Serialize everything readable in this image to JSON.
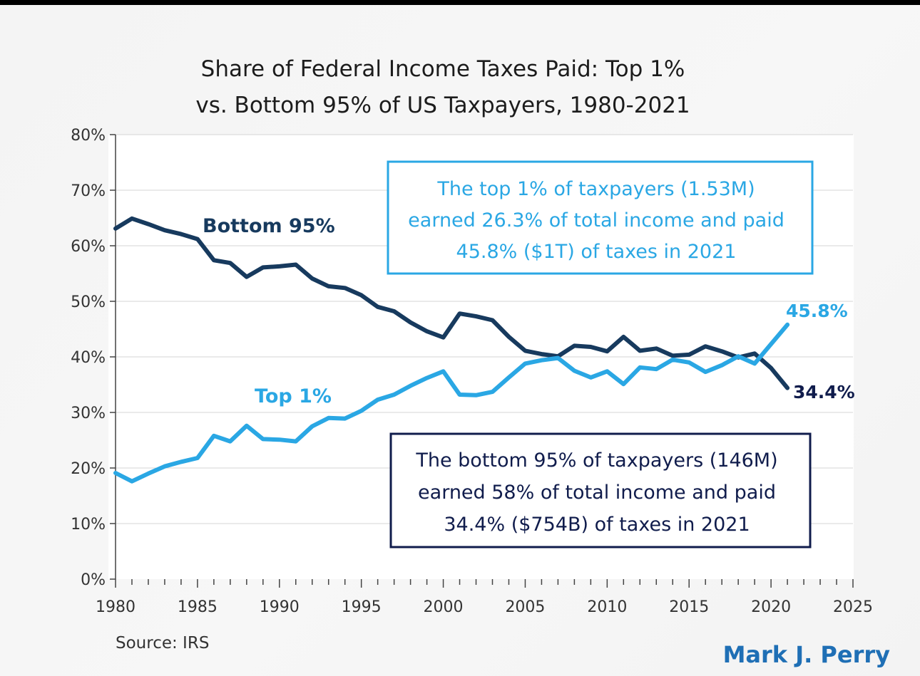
{
  "chart_data": {
    "type": "line",
    "title": [
      "Share of Federal Income Taxes Paid: Top 1%",
      "vs. Bottom 95% of US Taxpayers, 1980-2021"
    ],
    "xlabel": "",
    "ylabel": "",
    "xlim": [
      1980,
      2025
    ],
    "ylim": [
      0,
      80
    ],
    "x_ticks": [
      1980,
      1985,
      1990,
      1995,
      2000,
      2005,
      2010,
      2015,
      2020,
      2025
    ],
    "y_ticks": [
      0,
      10,
      20,
      30,
      40,
      50,
      60,
      70,
      80
    ],
    "y_tick_labels": [
      "0%",
      "10%",
      "20%",
      "30%",
      "40%",
      "50%",
      "60%",
      "70%",
      "80%"
    ],
    "grid": "horizontal",
    "x": [
      1980,
      1981,
      1982,
      1983,
      1984,
      1985,
      1986,
      1987,
      1988,
      1989,
      1990,
      1991,
      1992,
      1993,
      1994,
      1995,
      1996,
      1997,
      1998,
      1999,
      2000,
      2001,
      2002,
      2003,
      2004,
      2005,
      2006,
      2007,
      2008,
      2009,
      2010,
      2011,
      2012,
      2013,
      2014,
      2015,
      2016,
      2017,
      2018,
      2019,
      2020,
      2021
    ],
    "series": [
      {
        "name": "Bottom 95%",
        "color": "#173a5e",
        "values": [
          63.1,
          64.9,
          63.9,
          62.8,
          62.1,
          61.2,
          57.4,
          56.9,
          54.4,
          56.1,
          56.3,
          56.6,
          54.1,
          52.7,
          52.4,
          51.1,
          49.0,
          48.2,
          46.2,
          44.6,
          43.5,
          47.8,
          47.3,
          46.6,
          43.6,
          41.1,
          40.5,
          40.1,
          42.0,
          41.8,
          41.0,
          43.6,
          41.1,
          41.5,
          40.2,
          40.4,
          41.9,
          41.0,
          39.9,
          40.6,
          38.0,
          34.4
        ],
        "end_label": "34.4%",
        "end_label_color": "#101c4c"
      },
      {
        "name": "Top 1%",
        "color": "#2aa7e4",
        "values": [
          19.1,
          17.6,
          19.0,
          20.3,
          21.1,
          21.8,
          25.8,
          24.8,
          27.6,
          25.2,
          25.1,
          24.8,
          27.5,
          29.0,
          28.9,
          30.3,
          32.3,
          33.2,
          34.8,
          36.2,
          37.4,
          33.2,
          33.1,
          33.7,
          36.3,
          38.8,
          39.4,
          39.8,
          37.5,
          36.3,
          37.4,
          35.1,
          38.1,
          37.8,
          39.5,
          39.0,
          37.3,
          38.5,
          40.1,
          38.8,
          42.3,
          45.8
        ],
        "end_label": "45.8%",
        "end_label_color": "#2aa7e4"
      }
    ],
    "annotations": [
      {
        "lines": [
          "The top 1% of taxpayers (1.53M)",
          "earned 26.3% of total income and paid",
          "45.8% ($1T) of taxes in 2021"
        ],
        "color": "#2aa7e4"
      },
      {
        "lines": [
          "The bottom 95% of taxpayers (146M)",
          "earned 58% of total income and paid",
          "34.4% ($754B) of taxes in 2021"
        ],
        "color": "#101c4c"
      }
    ],
    "source": "Source: IRS",
    "author": "Mark J. Perry",
    "author_color": "#1f6fb5"
  }
}
